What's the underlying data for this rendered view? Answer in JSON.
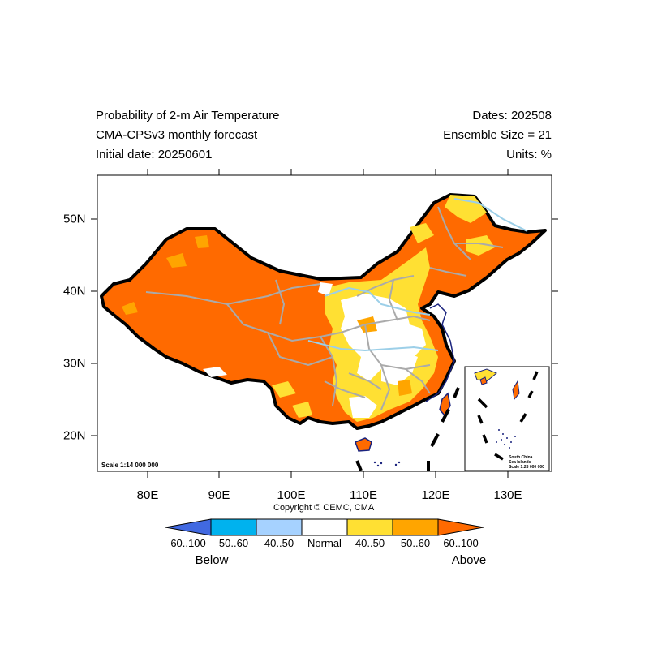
{
  "header": {
    "title_line1": "Probability of 2-m Air Temperature",
    "title_line2": "CMA-CPSv3 monthly forecast",
    "title_line3": "Initial date: 20250601",
    "dates": "Dates: 202508",
    "ensemble": "Ensemble Size = 21",
    "units": "Units: %"
  },
  "axes": {
    "x_ticks": [
      "80E",
      "90E",
      "100E",
      "110E",
      "120E",
      "130E"
    ],
    "y_ticks": [
      "50N",
      "40N",
      "30N",
      "20N"
    ]
  },
  "map": {
    "scale_label": "Scale 1:14 000 000",
    "copyright": "Copyright © CEMC, CMA",
    "inset": {
      "line1": "South China",
      "line2": "Sea Islands",
      "scale": "Scale 1:28 000 000"
    }
  },
  "colorbar": {
    "labels": [
      "60..100",
      "50..60",
      "40..50",
      "Normal",
      "40..50",
      "50..60",
      "60..100"
    ],
    "colors": [
      "#4169e1",
      "#00b2ee",
      "#a6d2ff",
      "#ffffff",
      "#ffe033",
      "#ffa500",
      "#ff6a00"
    ],
    "below": "Below",
    "above": "Above"
  }
}
